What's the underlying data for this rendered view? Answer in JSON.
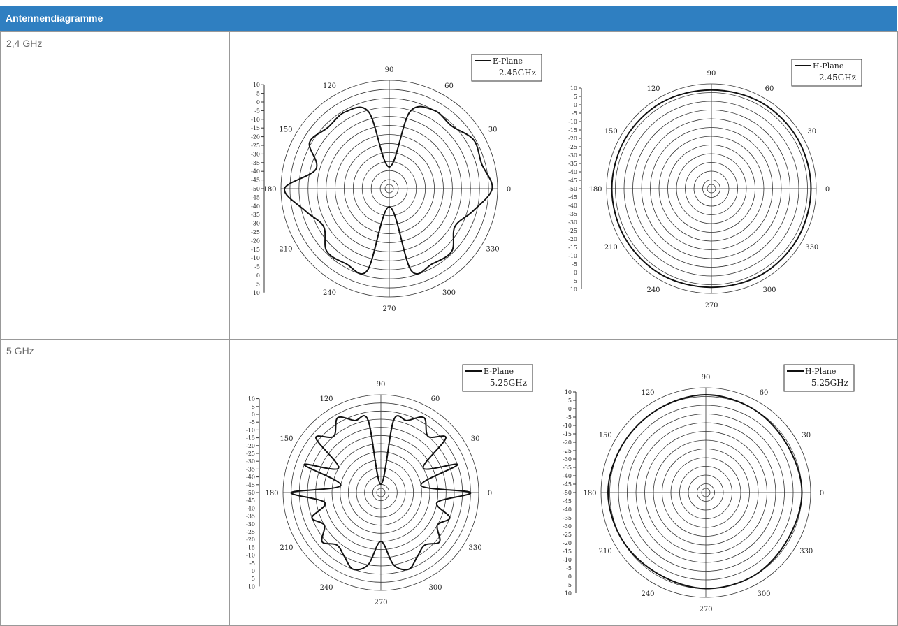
{
  "table": {
    "title": "Antennendiagramme",
    "rows": [
      [
        "2,4 GHz"
      ],
      [
        "5 GHz"
      ]
    ]
  },
  "chart_data": [
    {
      "type": "polar",
      "rlim": [
        -50,
        10
      ],
      "rticks": [
        10,
        5,
        0,
        -5,
        -10,
        -15,
        -20,
        -25,
        -30,
        -35,
        -40,
        -45,
        -50
      ],
      "thetaticks": [
        0,
        30,
        60,
        90,
        120,
        150,
        180,
        210,
        240,
        270,
        300,
        330
      ],
      "series": [
        {
          "name": "E-Plane",
          "label": "2.45GHz",
          "color": "#111111",
          "theta": [
            0,
            15,
            30,
            45,
            60,
            75,
            90,
            105,
            120,
            135,
            150,
            165,
            180,
            195,
            210,
            225,
            240,
            255,
            270,
            285,
            300,
            315,
            330,
            345
          ],
          "values": [
            7,
            3,
            4,
            -1,
            0,
            -6,
            -38,
            -6,
            -1,
            -2,
            1,
            -8,
            8,
            -2,
            -8,
            -1,
            -2,
            -3,
            -40,
            -3,
            -2,
            -1,
            -8,
            -2
          ]
        }
      ]
    },
    {
      "type": "polar",
      "rlim": [
        -50,
        10
      ],
      "rticks": [
        10,
        5,
        0,
        -5,
        -10,
        -15,
        -20,
        -25,
        -30,
        -35,
        -40,
        -45,
        -50
      ],
      "thetaticks": [
        0,
        30,
        60,
        90,
        120,
        150,
        180,
        210,
        240,
        270,
        300,
        330
      ],
      "series": [
        {
          "name": "H-Plane",
          "label": "2.45GHz",
          "color": "#111111",
          "theta": [
            0,
            30,
            60,
            90,
            120,
            150,
            180,
            210,
            240,
            270,
            300,
            330
          ],
          "values": [
            7,
            7,
            7,
            6.5,
            7,
            7,
            7,
            7,
            7,
            6.5,
            7,
            7
          ]
        }
      ]
    },
    {
      "type": "polar",
      "rlim": [
        -50,
        10
      ],
      "rticks": [
        10,
        5,
        0,
        -5,
        -10,
        -15,
        -20,
        -25,
        -30,
        -35,
        -40,
        -45,
        -50
      ],
      "thetaticks": [
        0,
        30,
        60,
        90,
        120,
        150,
        180,
        210,
        240,
        270,
        300,
        330
      ],
      "series": [
        {
          "name": "E-Plane",
          "label": "5.25GHz",
          "color": "#111111",
          "theta": [
            0,
            10,
            20,
            30,
            40,
            50,
            60,
            70,
            80,
            90,
            100,
            110,
            120,
            130,
            140,
            150,
            160,
            170,
            180,
            190,
            200,
            210,
            220,
            230,
            240,
            250,
            260,
            270,
            280,
            290,
            300,
            310,
            320,
            330,
            340,
            350
          ],
          "values": [
            5,
            -25,
            0,
            -20,
            2,
            -5,
            3,
            -3,
            -5,
            -45,
            -5,
            -3,
            3,
            -5,
            2,
            -20,
            0,
            -25,
            5,
            -15,
            -5,
            -10,
            -3,
            -8,
            -5,
            0,
            -5,
            -20,
            -5,
            0,
            -5,
            -8,
            -3,
            -10,
            -5,
            -15
          ]
        }
      ]
    },
    {
      "type": "polar",
      "rlim": [
        -50,
        10
      ],
      "rticks": [
        10,
        5,
        0,
        -5,
        -10,
        -15,
        -20,
        -25,
        -30,
        -35,
        -40,
        -45,
        -50
      ],
      "thetaticks": [
        0,
        30,
        60,
        90,
        120,
        150,
        180,
        210,
        240,
        270,
        300,
        330
      ],
      "series": [
        {
          "name": "H-Plane",
          "label": "5.25GHz",
          "color": "#111111",
          "theta": [
            0,
            30,
            60,
            90,
            120,
            150,
            180,
            210,
            240,
            270,
            300,
            330
          ],
          "values": [
            5,
            4,
            5,
            6,
            5,
            5,
            6,
            5,
            4,
            5,
            5,
            4
          ]
        }
      ]
    }
  ]
}
